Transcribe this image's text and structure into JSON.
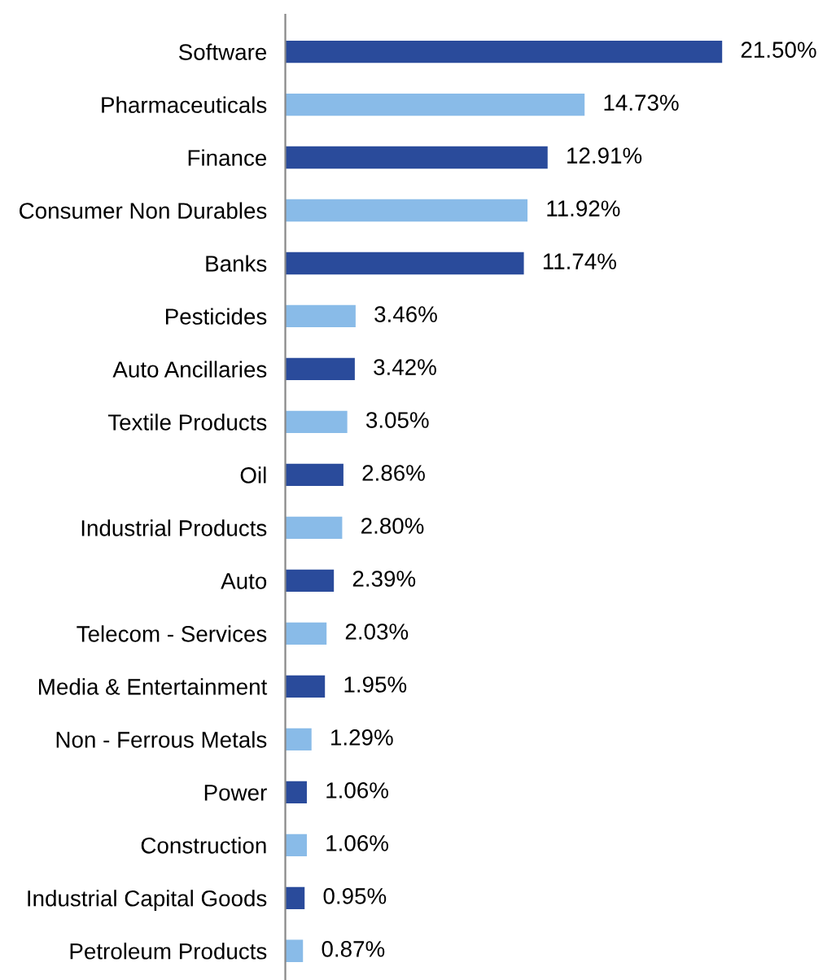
{
  "chart_data": {
    "type": "bar",
    "orientation": "horizontal",
    "categories": [
      "Software",
      "Pharmaceuticals",
      "Finance",
      "Consumer Non Durables",
      "Banks",
      "Pesticides",
      "Auto Ancillaries",
      "Textile Products",
      "Oil",
      "Industrial Products",
      "Auto",
      "Telecom - Services",
      "Media & Entertainment",
      "Non - Ferrous Metals",
      "Power",
      "Construction",
      "Industrial Capital Goods",
      "Petroleum Products"
    ],
    "values": [
      21.5,
      14.73,
      12.91,
      11.92,
      11.74,
      3.46,
      3.42,
      3.05,
      2.86,
      2.8,
      2.39,
      2.03,
      1.95,
      1.29,
      1.06,
      1.06,
      0.95,
      0.87
    ],
    "colors": [
      "#2a4b9b",
      "#89bbe8",
      "#2a4b9b",
      "#89bbe8",
      "#2a4b9b",
      "#89bbe8",
      "#2a4b9b",
      "#89bbe8",
      "#2a4b9b",
      "#89bbe8",
      "#2a4b9b",
      "#89bbe8",
      "#2a4b9b",
      "#89bbe8",
      "#2a4b9b",
      "#89bbe8",
      "#2a4b9b",
      "#89bbe8"
    ],
    "value_labels": [
      "21.50%",
      "14.73%",
      "12.91%",
      "11.92%",
      "11.74%",
      "3.46%",
      "3.42%",
      "3.05%",
      "2.86%",
      "2.80%",
      "2.39%",
      "2.03%",
      "1.95%",
      "1.29%",
      "1.06%",
      "1.06%",
      "0.95%",
      "0.87%"
    ],
    "grid": false,
    "legend": false
  }
}
